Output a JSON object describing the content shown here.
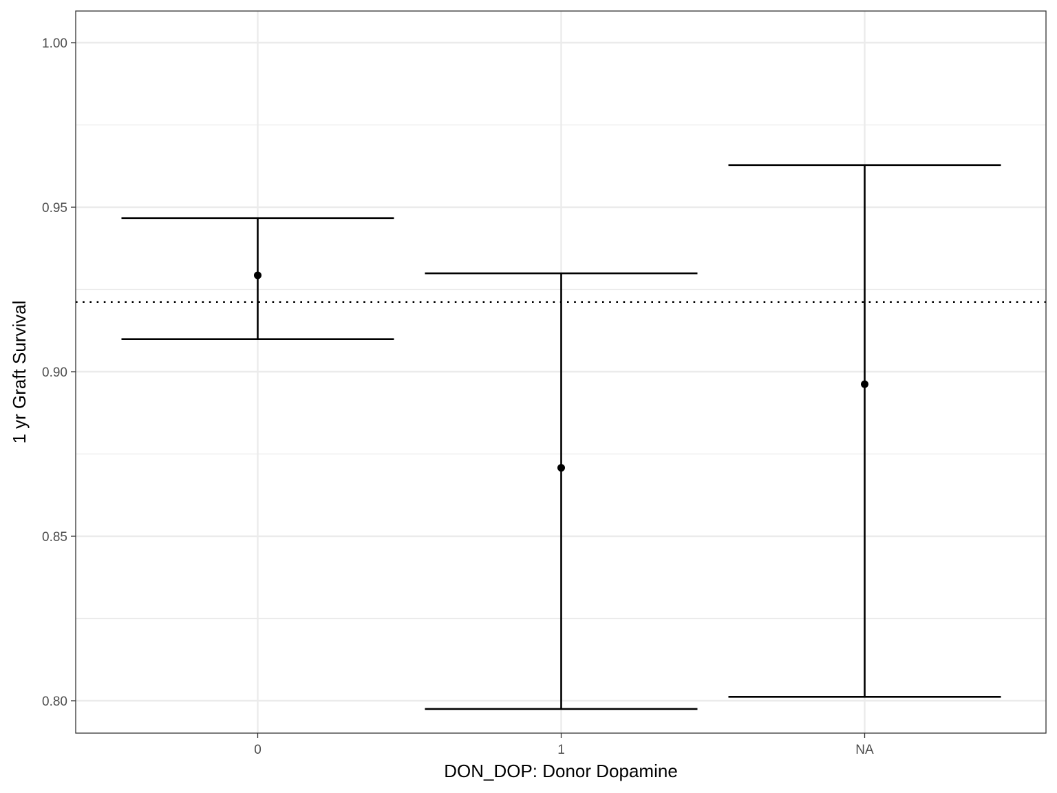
{
  "chart_data": {
    "type": "errorbar",
    "xlabel": "DON_DOP: Donor Dopamine",
    "ylabel": "1 yr Graft Survival",
    "categories": [
      "0",
      "1",
      "NA"
    ],
    "points": [
      {
        "category": "0",
        "estimate": 0.9293,
        "lower": 0.9099,
        "upper": 0.9467
      },
      {
        "category": "1",
        "estimate": 0.8708,
        "lower": 0.7975,
        "upper": 0.9299
      },
      {
        "category": "NA",
        "estimate": 0.8962,
        "lower": 0.8012,
        "upper": 0.9628
      }
    ],
    "reference_line": {
      "value": 0.9212,
      "style": "dotted"
    },
    "ylim": [
      0.79,
      1.0
    ],
    "yticks": [
      0.8,
      0.85,
      0.9,
      0.95,
      1.0
    ],
    "ytick_labels": [
      "0.80",
      "0.85",
      "0.90",
      "0.95",
      "1.00"
    ],
    "grid": true,
    "theme": "bw",
    "colors": {
      "marks": "#000000",
      "grid": "#ebebeb",
      "panel_border": "#333333"
    }
  }
}
